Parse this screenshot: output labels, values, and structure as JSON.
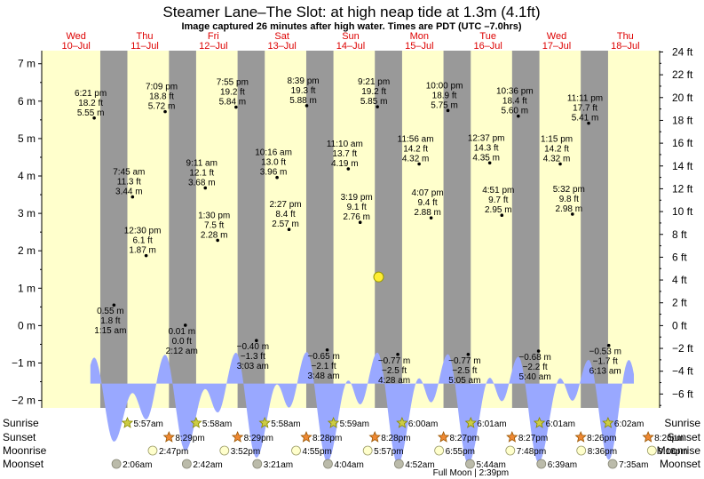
{
  "chart_data": {
    "type": "area",
    "title": "Steamer Lane–The Slot: at high  neap tide at 1.3m (4.1ft)",
    "subtitle": "Image captured 26 minutes after high water. Times are PDT (UTC –7.0hrs)",
    "ylabel_left_unit": "m",
    "ylabel_right_unit": "ft",
    "ylim_m": [
      -2.2,
      7.35
    ],
    "left_ticks": [
      "7 m",
      "6 m",
      "5 m",
      "4 m",
      "3 m",
      "2 m",
      "1 m",
      "0 m",
      "−1 m",
      "−2 m"
    ],
    "left_tick_values": [
      7,
      6,
      5,
      4,
      3,
      2,
      1,
      0,
      -1,
      -2
    ],
    "right_ticks": [
      "24 ft",
      "22 ft",
      "20 ft",
      "18 ft",
      "16 ft",
      "14 ft",
      "12 ft",
      "10 ft",
      "8 ft",
      "6 ft",
      "4 ft",
      "2 ft",
      "0 ft",
      "−2 ft",
      "−4 ft",
      "−6 ft"
    ],
    "right_tick_values": [
      24,
      22,
      20,
      18,
      16,
      14,
      12,
      10,
      8,
      6,
      4,
      2,
      0,
      -2,
      -4,
      -6
    ],
    "days": [
      {
        "dow": "Wed",
        "date": "10–Jul"
      },
      {
        "dow": "Thu",
        "date": "11–Jul"
      },
      {
        "dow": "Fri",
        "date": "12–Jul"
      },
      {
        "dow": "Sat",
        "date": "13–Jul"
      },
      {
        "dow": "Sun",
        "date": "14–Jul"
      },
      {
        "dow": "Mon",
        "date": "15–Jul"
      },
      {
        "dow": "Tue",
        "date": "16–Jul"
      },
      {
        "dow": "Wed",
        "date": "17–Jul"
      },
      {
        "dow": "Thu",
        "date": "18–Jul"
      }
    ],
    "extremes": [
      {
        "time": "6:21 pm",
        "ft": "18.2 ft",
        "m": "5.55 m",
        "h": 5.55,
        "t": 18.35
      },
      {
        "time": "1:15 am",
        "ft": "1.8 ft",
        "m": "0.55 m",
        "h": 0.55,
        "t": 25.25
      },
      {
        "time": "7:45 am",
        "ft": "11.3 ft",
        "m": "3.44 m",
        "h": 3.44,
        "t": 31.75
      },
      {
        "time": "12:30 pm",
        "ft": "6.1 ft",
        "m": "1.87 m",
        "h": 1.87,
        "t": 36.5
      },
      {
        "time": "7:09 pm",
        "ft": "18.8 ft",
        "m": "5.72 m",
        "h": 5.72,
        "t": 43.15
      },
      {
        "time": "2:12 am",
        "ft": "0.0 ft",
        "m": "0.01 m",
        "h": 0.01,
        "t": 50.2
      },
      {
        "time": "9:11 am",
        "ft": "12.1 ft",
        "m": "3.68 m",
        "h": 3.68,
        "t": 57.18
      },
      {
        "time": "1:30 pm",
        "ft": "7.5 ft",
        "m": "2.28 m",
        "h": 2.28,
        "t": 61.5
      },
      {
        "time": "7:55 pm",
        "ft": "19.2 ft",
        "m": "5.84 m",
        "h": 5.84,
        "t": 67.92
      },
      {
        "time": "3:03 am",
        "ft": "−1.3 ft",
        "m": "−0.40 m",
        "h": -0.4,
        "t": 75.05
      },
      {
        "time": "10:16 am",
        "ft": "13.0 ft",
        "m": "3.96 m",
        "h": 3.96,
        "t": 82.27
      },
      {
        "time": "2:27 pm",
        "ft": "8.4 ft",
        "m": "2.57 m",
        "h": 2.57,
        "t": 86.45
      },
      {
        "time": "8:39 pm",
        "ft": "19.3 ft",
        "m": "5.88 m",
        "h": 5.88,
        "t": 92.65
      },
      {
        "time": "3:48 am",
        "ft": "−2.1 ft",
        "m": "−0.65 m",
        "h": -0.65,
        "t": 99.8
      },
      {
        "time": "11:10 am",
        "ft": "13.7 ft",
        "m": "4.19 m",
        "h": 4.19,
        "t": 107.17
      },
      {
        "time": "3:19 pm",
        "ft": "9.1 ft",
        "m": "2.76 m",
        "h": 2.76,
        "t": 111.32
      },
      {
        "time": "9:21 pm",
        "ft": "19.2 ft",
        "m": "5.85 m",
        "h": 5.85,
        "t": 117.35
      },
      {
        "time": "4:28 am",
        "ft": "−2.5 ft",
        "m": "−0.77 m",
        "h": -0.77,
        "t": 124.47
      },
      {
        "time": "11:56 am",
        "ft": "14.2 ft",
        "m": "4.32 m",
        "h": 4.32,
        "t": 131.93
      },
      {
        "time": "4:07 pm",
        "ft": "9.4 ft",
        "m": "2.88 m",
        "h": 2.88,
        "t": 136.12
      },
      {
        "time": "10:00 pm",
        "ft": "18.9 ft",
        "m": "5.75 m",
        "h": 5.75,
        "t": 142.0
      },
      {
        "time": "5:05 am",
        "ft": "−2.5 ft",
        "m": "−0.77 m",
        "h": -0.77,
        "t": 149.08
      },
      {
        "time": "12:37 pm",
        "ft": "14.3 ft",
        "m": "4.35 m",
        "h": 4.35,
        "t": 156.62
      },
      {
        "time": "4:51 pm",
        "ft": "9.7 ft",
        "m": "2.95 m",
        "h": 2.95,
        "t": 160.85
      },
      {
        "time": "10:36 pm",
        "ft": "18.4 ft",
        "m": "5.60 m",
        "h": 5.6,
        "t": 166.6
      },
      {
        "time": "5:40 am",
        "ft": "−2.2 ft",
        "m": "−0.68 m",
        "h": -0.68,
        "t": 173.67
      },
      {
        "time": "1:15 pm",
        "ft": "14.2 ft",
        "m": "4.32 m",
        "h": 4.32,
        "t": 181.25
      },
      {
        "time": "5:32 pm",
        "ft": "9.8 ft",
        "m": "2.98 m",
        "h": 2.98,
        "t": 185.53
      },
      {
        "time": "11:11 pm",
        "ft": "17.7 ft",
        "m": "5.41 m",
        "h": 5.41,
        "t": 191.18
      },
      {
        "time": "6:13 am",
        "ft": "−1.7 ft",
        "m": "−0.53 m",
        "h": -0.53,
        "t": 198.22
      }
    ],
    "area_start_t": 17.0,
    "area_end_t": 207.0,
    "area_offset_m": -4.35,
    "area_scale": 0.45,
    "nights": [
      [
        20.48,
        29.95
      ],
      [
        44.48,
        53.97
      ],
      [
        68.47,
        77.97
      ],
      [
        92.47,
        101.98
      ],
      [
        116.45,
        125.98
      ],
      [
        140.45,
        149.98
      ],
      [
        164.43,
        173.98
      ],
      [
        188.43,
        197.98
      ]
    ],
    "current": {
      "t": 117.78,
      "h": 1.3
    },
    "rows": {
      "sunrise": {
        "label": "Sunrise",
        "items": [
          {
            "time": "5:57am",
            "t": 29.95
          },
          {
            "time": "5:58am",
            "t": 53.97
          },
          {
            "time": "5:58am",
            "t": 77.97
          },
          {
            "time": "5:59am",
            "t": 101.98
          },
          {
            "time": "6:00am",
            "t": 125.98
          },
          {
            "time": "6:01am",
            "t": 149.98
          },
          {
            "time": "6:01am",
            "t": 173.98
          },
          {
            "time": "6:02am",
            "t": 197.98
          }
        ]
      },
      "sunset": {
        "label": "Sunset",
        "items": [
          {
            "time": "8:29pm",
            "t": 44.48
          },
          {
            "time": "8:29pm",
            "t": 68.47
          },
          {
            "time": "8:28pm",
            "t": 92.47
          },
          {
            "time": "8:28pm",
            "t": 116.45
          },
          {
            "time": "8:27pm",
            "t": 140.45
          },
          {
            "time": "8:27pm",
            "t": 164.43
          },
          {
            "time": "8:26pm",
            "t": 188.43
          },
          {
            "time": "8:26pm",
            "t": 212.0
          }
        ]
      },
      "moonrise": {
        "label": "Moonrise",
        "items": [
          {
            "time": "2:47pm",
            "t": 38.78
          },
          {
            "time": "3:52pm",
            "t": 63.87
          },
          {
            "time": "4:55pm",
            "t": 88.92
          },
          {
            "time": "5:57pm",
            "t": 113.95
          },
          {
            "time": "6:55pm",
            "t": 138.92
          },
          {
            "time": "7:48pm",
            "t": 163.8
          },
          {
            "time": "8:36pm",
            "t": 188.6
          },
          {
            "time": "9:18pm",
            "t": 213.3
          }
        ]
      },
      "moonset": {
        "label": "Moonset",
        "items": [
          {
            "time": "2:06am",
            "t": 26.1
          },
          {
            "time": "2:42am",
            "t": 50.7
          },
          {
            "time": "3:21am",
            "t": 75.35
          },
          {
            "time": "4:04am",
            "t": 100.07
          },
          {
            "time": "4:52am",
            "t": 124.87
          },
          {
            "time": "5:44am",
            "t": 149.73
          },
          {
            "time": "6:39am",
            "t": 174.65
          },
          {
            "time": "7:35am",
            "t": 199.58
          }
        ]
      }
    },
    "full_moon": "Full Moon | 2:39pm",
    "colors": {
      "day_bg": "#ffffcc",
      "night_bg": "#999999",
      "water": "#99a8ff",
      "day_label": "#dd0000",
      "current_marker": "#ffee33"
    }
  }
}
